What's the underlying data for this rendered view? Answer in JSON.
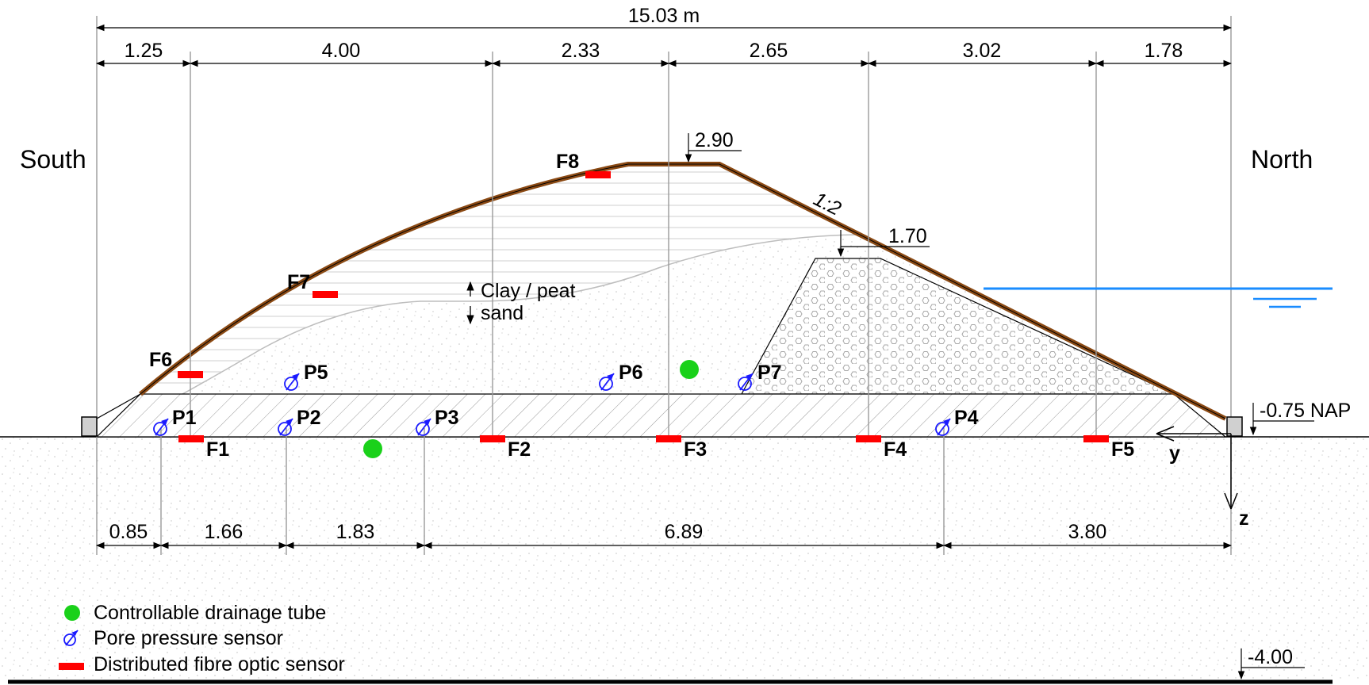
{
  "sides": {
    "south": "South",
    "north": "North"
  },
  "dimensions": {
    "total_width": "15.03 m",
    "top": [
      "1.25",
      "4.00",
      "2.33",
      "2.65",
      "3.02",
      "1.78"
    ],
    "bottom": [
      "0.85",
      "1.66",
      "1.83",
      "6.89",
      "3.80"
    ]
  },
  "levels": {
    "crest": "2.90",
    "berm": "1.70",
    "base": "-0.75 NAP",
    "bottom": "-4.00"
  },
  "slope_label": "1:2",
  "layer_label": {
    "top": "Clay / peat",
    "bottom": "sand"
  },
  "axes": {
    "y": "y",
    "z": "z"
  },
  "fibre_sensors": [
    "F1",
    "F2",
    "F3",
    "F4",
    "F5",
    "F6",
    "F7",
    "F8"
  ],
  "pore_sensors": [
    "P1",
    "P2",
    "P3",
    "P4",
    "P5",
    "P6",
    "P7"
  ],
  "legend": {
    "drainage": "Controllable drainage tube",
    "pore": "Pore pressure sensor",
    "fibre": "Distributed fibre optic sensor"
  },
  "colors": {
    "fibre": "#ff0000",
    "pore": "#1a1aff",
    "drainage": "#1ad11a",
    "clay_surface": "#8b4a14",
    "water": "#1a8cff"
  }
}
